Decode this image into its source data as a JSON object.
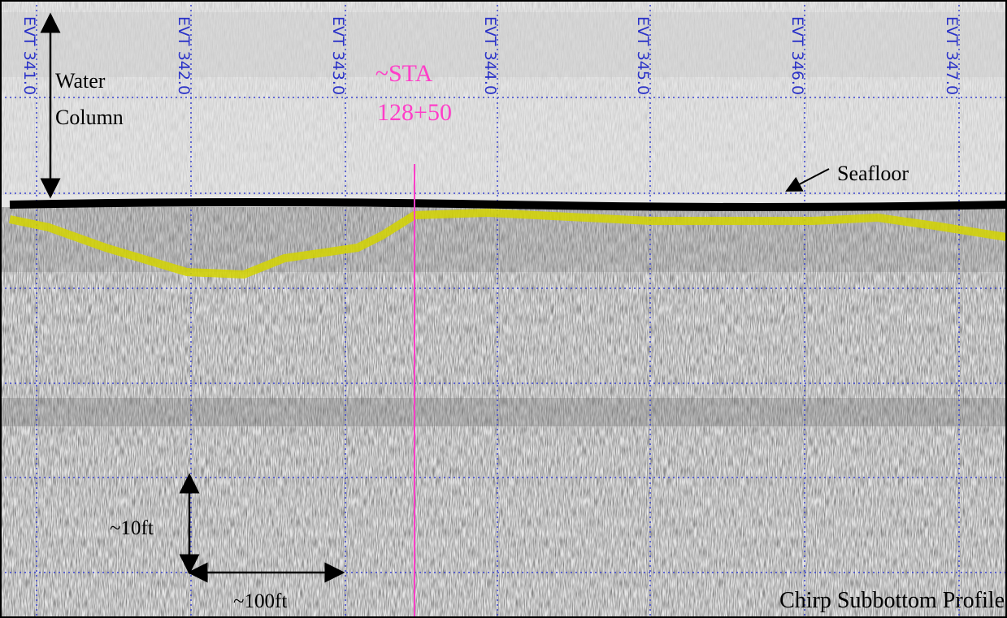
{
  "events": [
    "EVT 341.0",
    "EVT 342.0",
    "EVT 343.0",
    "EVT 344.0",
    "EVT 345.0",
    "EVT 346.0",
    "EVT 347.0"
  ],
  "water_column": [
    "Water",
    "Column"
  ],
  "station": [
    "~STA",
    "128+50"
  ],
  "seafloor": "Seafloor",
  "vertical_scale": "~10ft",
  "horizontal_scale": "~100ft",
  "caption": "Chirp Subbottom Profile"
}
